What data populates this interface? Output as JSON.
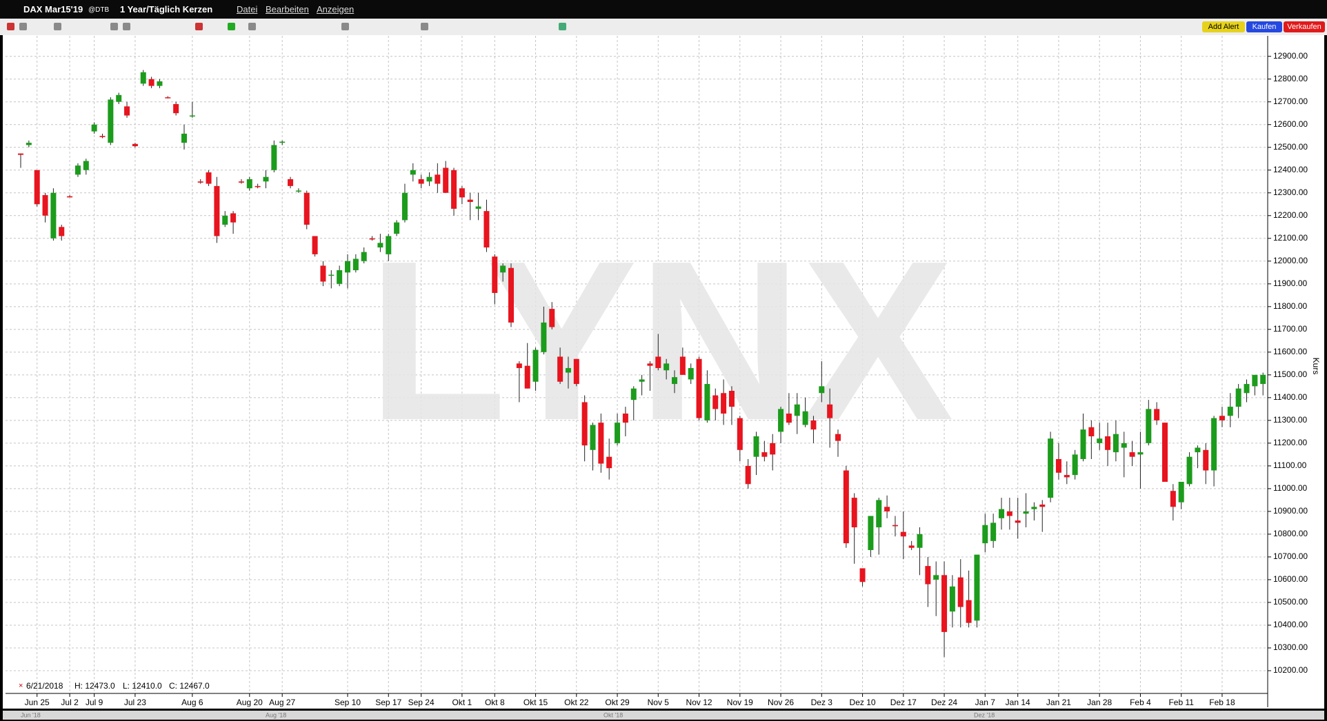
{
  "ui": {
    "instrument": "DAX Mar15'19",
    "exchange": "@DTB",
    "period": "1 Year/Täglich Kerzen",
    "menu": [
      "Datei",
      "Bearbeiten",
      "Anzeigen"
    ],
    "buttons": [
      "Add Alert",
      "Kaufen",
      "Verkaufen"
    ],
    "watermark": "LYNX",
    "info": [
      "6/21/2018",
      "H: 12473.0",
      "L: 12410.0",
      "C: 12467.0"
    ],
    "scroll_labels": [
      "Jun '18",
      "Aug '18",
      "Okt '18",
      "Dez '18"
    ]
  },
  "chart_data": {
    "type": "candlestick",
    "y_label": "Kurs",
    "up_color": "#1c9c1c",
    "down_color": "#e8141e",
    "grid": true,
    "ylim": [
      10100,
      12990
    ],
    "yticks": [
      {
        "value": 10200,
        "label": "10200.00"
      },
      {
        "value": 10300,
        "label": "10300.00"
      },
      {
        "value": 10400,
        "label": "10400.00"
      },
      {
        "value": 10500,
        "label": "10500.00"
      },
      {
        "value": 10600,
        "label": "10600.00"
      },
      {
        "value": 10700,
        "label": "10700.00"
      },
      {
        "value": 10800,
        "label": "10800.00"
      },
      {
        "value": 10900,
        "label": "10900.00"
      },
      {
        "value": 11000,
        "label": "11000.00"
      },
      {
        "value": 11100,
        "label": "11100.00"
      },
      {
        "value": 11200,
        "label": "11200.00"
      },
      {
        "value": 11300,
        "label": "11300.00"
      },
      {
        "value": 11400,
        "label": "11400.00"
      },
      {
        "value": 11500,
        "label": "11500.00"
      },
      {
        "value": 11600,
        "label": "11600.00"
      },
      {
        "value": 11700,
        "label": "11700.00"
      },
      {
        "value": 11800,
        "label": "11800.00"
      },
      {
        "value": 11900,
        "label": "11900.00"
      },
      {
        "value": 12000,
        "label": "12000.00"
      },
      {
        "value": 12100,
        "label": "12100.00"
      },
      {
        "value": 12200,
        "label": "12200.00"
      },
      {
        "value": 12300,
        "label": "12300.00"
      },
      {
        "value": 12400,
        "label": "12400.00"
      },
      {
        "value": 12500,
        "label": "12500.00"
      },
      {
        "value": 12600,
        "label": "12600.00"
      },
      {
        "value": 12700,
        "label": "12700.00"
      },
      {
        "value": 12800,
        "label": "12800.00"
      },
      {
        "value": 12900,
        "label": "12900.00"
      }
    ],
    "categories": [
      null,
      null,
      "Jun 25",
      null,
      null,
      null,
      "Jul 2",
      null,
      null,
      "Jul 9",
      null,
      null,
      null,
      null,
      "Jul 23",
      null,
      null,
      null,
      null,
      null,
      null,
      "Aug 6",
      null,
      null,
      null,
      null,
      null,
      null,
      "Aug 20",
      null,
      null,
      null,
      "Aug 27",
      null,
      null,
      null,
      null,
      null,
      null,
      null,
      "Sep 10",
      null,
      null,
      null,
      null,
      "Sep 17",
      null,
      null,
      null,
      "Sep 24",
      null,
      null,
      null,
      null,
      "Okt 1",
      null,
      null,
      null,
      "Okt 8",
      null,
      null,
      null,
      null,
      "Okt 15",
      null,
      null,
      null,
      null,
      "Okt 22",
      null,
      null,
      null,
      null,
      "Okt 29",
      null,
      null,
      null,
      null,
      "Nov 5",
      null,
      null,
      null,
      null,
      "Nov 12",
      null,
      null,
      null,
      null,
      "Nov 19",
      null,
      null,
      null,
      null,
      "Nov 26",
      null,
      null,
      null,
      null,
      "Dez 3",
      null,
      null,
      null,
      null,
      "Dez 10",
      null,
      null,
      null,
      null,
      "Dez 17",
      null,
      null,
      null,
      null,
      "Dez 24",
      null,
      null,
      null,
      null,
      "Jan 7",
      null,
      null,
      null,
      "Jan 14",
      null,
      null,
      null,
      null,
      "Jan 21",
      null,
      null,
      null,
      null,
      "Jan 28",
      null,
      null,
      null,
      null,
      "Feb 4",
      null,
      null,
      null,
      null,
      "Feb 11",
      null,
      null,
      null,
      null,
      "Feb 18",
      null,
      null,
      null,
      null,
      null
    ],
    "ohlc": [
      [
        12473,
        12473,
        12410,
        12467
      ],
      [
        12510,
        12530,
        12500,
        12520
      ],
      [
        12400,
        12400,
        12240,
        12250
      ],
      [
        12290,
        12300,
        12170,
        12200
      ],
      [
        12100,
        12320,
        12090,
        12300
      ],
      [
        12150,
        12160,
        12090,
        12110
      ],
      [
        12285,
        12290,
        12280,
        12280
      ],
      [
        12380,
        12430,
        12370,
        12420
      ],
      [
        12400,
        12450,
        12380,
        12440
      ],
      [
        12570,
        12610,
        12560,
        12600
      ],
      [
        12550,
        12560,
        12540,
        12545
      ],
      [
        12520,
        12720,
        12510,
        12710
      ],
      [
        12700,
        12740,
        12690,
        12730
      ],
      [
        12680,
        12700,
        12630,
        12640
      ],
      [
        12515,
        12520,
        12500,
        12505
      ],
      [
        12780,
        12840,
        12770,
        12830
      ],
      [
        12800,
        12810,
        12760,
        12770
      ],
      [
        12770,
        12800,
        12760,
        12790
      ],
      [
        12720,
        12725,
        12715,
        12718
      ],
      [
        12690,
        12700,
        12640,
        12650
      ],
      [
        12520,
        12600,
        12490,
        12560
      ],
      [
        12640,
        12700,
        12630,
        12640
      ],
      [
        12350,
        12360,
        12340,
        12345
      ],
      [
        12390,
        12400,
        12330,
        12340
      ],
      [
        12330,
        12370,
        12080,
        12110
      ],
      [
        12160,
        12220,
        12150,
        12200
      ],
      [
        12210,
        12220,
        12120,
        12170
      ],
      [
        12350,
        12360,
        12340,
        12345
      ],
      [
        12320,
        12370,
        12310,
        12360
      ],
      [
        12330,
        12340,
        12320,
        12325
      ],
      [
        12350,
        12400,
        12320,
        12370
      ],
      [
        12400,
        12530,
        12390,
        12510
      ],
      [
        12520,
        12530,
        12510,
        12525
      ],
      [
        12360,
        12370,
        12320,
        12330
      ],
      [
        12310,
        12320,
        12300,
        12310
      ],
      [
        12300,
        12310,
        12140,
        12160
      ],
      [
        12110,
        12110,
        12020,
        12030
      ],
      [
        11980,
        12000,
        11890,
        11910
      ],
      [
        11940,
        11960,
        11880,
        11940
      ],
      [
        11900,
        11980,
        11890,
        11960
      ],
      [
        11950,
        12030,
        11880,
        12000
      ],
      [
        11960,
        12030,
        11950,
        12010
      ],
      [
        12000,
        12060,
        11990,
        12040
      ],
      [
        12100,
        12110,
        12090,
        12095
      ],
      [
        12060,
        12120,
        12040,
        12080
      ],
      [
        12030,
        12120,
        12000,
        12110
      ],
      [
        12120,
        12180,
        12110,
        12170
      ],
      [
        12180,
        12340,
        12170,
        12300
      ],
      [
        12380,
        12430,
        12350,
        12400
      ],
      [
        12360,
        12380,
        12320,
        12340
      ],
      [
        12350,
        12390,
        12330,
        12370
      ],
      [
        12380,
        12430,
        12300,
        12340
      ],
      [
        12410,
        12440,
        12300,
        12300
      ],
      [
        12400,
        12410,
        12200,
        12230
      ],
      [
        12320,
        12330,
        12250,
        12280
      ],
      [
        12270,
        12300,
        12180,
        12260
      ],
      [
        12230,
        12300,
        12180,
        12240
      ],
      [
        12220,
        12270,
        12040,
        12060
      ],
      [
        12020,
        12030,
        11810,
        11860
      ],
      [
        11950,
        11990,
        11910,
        11980
      ],
      [
        11970,
        11990,
        11710,
        11730
      ],
      [
        11550,
        11560,
        11380,
        11530
      ],
      [
        11540,
        11640,
        11440,
        11440
      ],
      [
        11470,
        11620,
        11430,
        11610
      ],
      [
        11600,
        11800,
        11590,
        11730
      ],
      [
        11790,
        11820,
        11700,
        11710
      ],
      [
        11580,
        11620,
        11460,
        11470
      ],
      [
        11510,
        11580,
        11440,
        11530
      ],
      [
        11570,
        11570,
        11450,
        11460
      ],
      [
        11380,
        11410,
        11120,
        11190
      ],
      [
        11170,
        11290,
        11080,
        11280
      ],
      [
        11290,
        11330,
        11070,
        11110
      ],
      [
        11140,
        11220,
        11040,
        11090
      ],
      [
        11200,
        11330,
        11190,
        11290
      ],
      [
        11330,
        11360,
        11230,
        11290
      ],
      [
        11390,
        11450,
        11300,
        11440
      ],
      [
        11470,
        11500,
        11410,
        11480
      ],
      [
        11550,
        11560,
        11430,
        11540
      ],
      [
        11580,
        11680,
        11520,
        11530
      ],
      [
        11520,
        11570,
        11480,
        11550
      ],
      [
        11460,
        11520,
        11420,
        11490
      ],
      [
        11580,
        11620,
        11500,
        11500
      ],
      [
        11480,
        11550,
        11460,
        11530
      ],
      [
        11570,
        11580,
        11300,
        11310
      ],
      [
        11300,
        11520,
        11290,
        11460
      ],
      [
        11410,
        11440,
        11300,
        11350
      ],
      [
        11420,
        11480,
        11280,
        11330
      ],
      [
        11430,
        11450,
        11280,
        11360
      ],
      [
        11310,
        11320,
        11120,
        11170
      ],
      [
        11100,
        11130,
        11000,
        11020
      ],
      [
        11140,
        11250,
        11060,
        11230
      ],
      [
        11160,
        11210,
        11120,
        11140
      ],
      [
        11200,
        11240,
        11080,
        11150
      ],
      [
        11250,
        11360,
        11200,
        11350
      ],
      [
        11330,
        11420,
        11280,
        11290
      ],
      [
        11320,
        11420,
        11240,
        11370
      ],
      [
        11280,
        11400,
        11270,
        11340
      ],
      [
        11300,
        11320,
        11200,
        11260
      ],
      [
        11420,
        11560,
        11380,
        11450
      ],
      [
        11370,
        11440,
        11180,
        11310
      ],
      [
        11240,
        11260,
        11140,
        11210
      ],
      [
        11080,
        11100,
        10740,
        10760
      ],
      [
        10960,
        10980,
        10670,
        10830
      ],
      [
        10650,
        10650,
        10570,
        10590
      ],
      [
        10730,
        10880,
        10700,
        10880
      ],
      [
        10830,
        10960,
        10710,
        10950
      ],
      [
        10920,
        10970,
        10870,
        10900
      ],
      [
        10840,
        10880,
        10790,
        10835
      ],
      [
        10810,
        10900,
        10690,
        10790
      ],
      [
        10750,
        10770,
        10730,
        10740
      ],
      [
        10740,
        10830,
        10620,
        10800
      ],
      [
        10660,
        10700,
        10480,
        10580
      ],
      [
        10600,
        10680,
        10440,
        10620
      ],
      [
        10620,
        10680,
        10260,
        10370
      ],
      [
        10460,
        10620,
        10390,
        10570
      ],
      [
        10610,
        10690,
        10390,
        10480
      ],
      [
        10510,
        10640,
        10390,
        10410
      ],
      [
        10420,
        10700,
        10390,
        10710
      ],
      [
        10760,
        10890,
        10720,
        10840
      ],
      [
        10770,
        10890,
        10740,
        10850
      ],
      [
        10870,
        10960,
        10820,
        10910
      ],
      [
        10900,
        10960,
        10820,
        10880
      ],
      [
        10860,
        10960,
        10780,
        10850
      ],
      [
        10890,
        10980,
        10830,
        10900
      ],
      [
        10910,
        10940,
        10860,
        10920
      ],
      [
        10930,
        10950,
        10810,
        10920
      ],
      [
        10960,
        11250,
        10940,
        11220
      ],
      [
        11130,
        11200,
        11040,
        11070
      ],
      [
        11060,
        11120,
        11020,
        11050
      ],
      [
        11060,
        11170,
        11040,
        11150
      ],
      [
        11130,
        11330,
        11120,
        11260
      ],
      [
        11270,
        11300,
        11130,
        11230
      ],
      [
        11200,
        11290,
        11170,
        11220
      ],
      [
        11230,
        11290,
        11100,
        11170
      ],
      [
        11160,
        11300,
        11120,
        11240
      ],
      [
        11180,
        11250,
        11050,
        11200
      ],
      [
        11160,
        11210,
        11100,
        11140
      ],
      [
        11150,
        11250,
        11000,
        11160
      ],
      [
        11200,
        11390,
        11190,
        11350
      ],
      [
        11350,
        11380,
        11280,
        11300
      ],
      [
        11290,
        11290,
        11040,
        11030
      ],
      [
        10990,
        11020,
        10860,
        10920
      ],
      [
        10940,
        11030,
        10910,
        11030
      ],
      [
        11020,
        11160,
        11010,
        11140
      ],
      [
        11160,
        11190,
        11090,
        11180
      ],
      [
        11170,
        11200,
        11020,
        11080
      ],
      [
        11080,
        11320,
        11010,
        11310
      ],
      [
        11320,
        11360,
        11270,
        11300
      ],
      [
        11320,
        11420,
        11270,
        11360
      ],
      [
        11360,
        11460,
        11310,
        11440
      ],
      [
        11420,
        11480,
        11380,
        11460
      ],
      [
        11450,
        11500,
        11410,
        11500
      ],
      [
        11460,
        11510,
        11410,
        11500
      ]
    ]
  }
}
